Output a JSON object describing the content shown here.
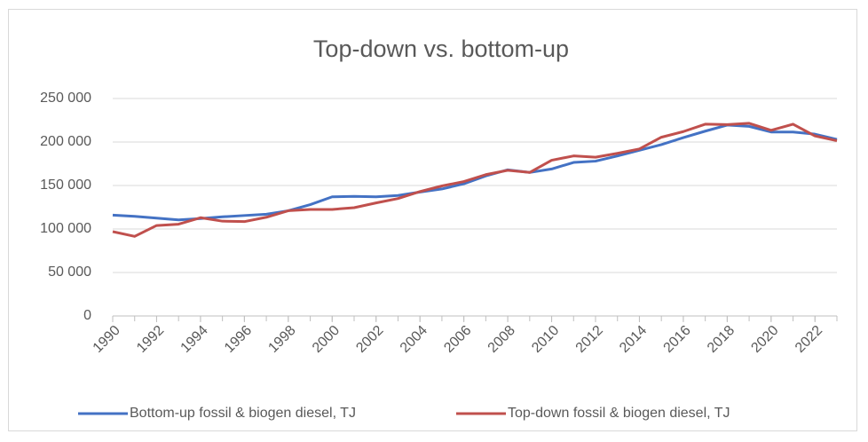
{
  "chart_data": {
    "type": "line",
    "title": "Top-down vs. bottom-up",
    "x": [
      1990,
      1991,
      1992,
      1993,
      1994,
      1995,
      1996,
      1997,
      1998,
      1999,
      2000,
      2001,
      2002,
      2003,
      2004,
      2005,
      2006,
      2007,
      2008,
      2009,
      2010,
      2011,
      2012,
      2013,
      2014,
      2015,
      2016,
      2017,
      2018,
      2019,
      2020,
      2021,
      2022,
      2023
    ],
    "xlim": [
      1990,
      2023
    ],
    "xticks": [
      1990,
      1992,
      1994,
      1996,
      1998,
      2000,
      2002,
      2004,
      2006,
      2008,
      2010,
      2012,
      2014,
      2016,
      2018,
      2020,
      2022
    ],
    "ylim": [
      0,
      250000
    ],
    "yticks": [
      0,
      {
        "value": 50000,
        "label": "50 000"
      },
      {
        "value": 100000,
        "label": "100 000"
      },
      {
        "value": 150000,
        "label": "150 000"
      },
      {
        "value": 200000,
        "label": "200 000"
      },
      {
        "value": 250000,
        "label": "250 000"
      }
    ],
    "grid": true,
    "legend": "bottom",
    "series": [
      {
        "name": "Bottom-up fossil & biogen diesel, TJ",
        "color": "#4472c4",
        "values": [
          116000,
          114500,
          112500,
          110500,
          112000,
          114000,
          115500,
          117000,
          121000,
          128000,
          137000,
          137500,
          137000,
          138500,
          142500,
          146000,
          152000,
          161000,
          168000,
          165000,
          169000,
          176500,
          178000,
          184000,
          190500,
          197000,
          205000,
          212500,
          219500,
          218000,
          211500,
          211500,
          209000,
          203000
        ]
      },
      {
        "name": "Top-down fossil & biogen diesel, TJ",
        "color": "#c0504d",
        "values": [
          97000,
          91500,
          104000,
          105500,
          113000,
          109000,
          108500,
          113500,
          121000,
          122500,
          122500,
          124500,
          130000,
          135000,
          143000,
          149500,
          154500,
          162500,
          167500,
          165000,
          179000,
          184000,
          182500,
          187000,
          192000,
          205500,
          212000,
          220500,
          220000,
          221500,
          213500,
          220500,
          207000,
          201500
        ]
      }
    ]
  }
}
